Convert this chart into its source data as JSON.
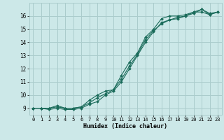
{
  "xlabel": "Humidex (Indice chaleur)",
  "bg_color": "#cce8e8",
  "grid_color": "#aacccc",
  "line_color": "#1a6b5a",
  "x_values": [
    0,
    1,
    2,
    3,
    4,
    5,
    6,
    7,
    8,
    9,
    10,
    11,
    12,
    13,
    14,
    15,
    16,
    17,
    18,
    19,
    20,
    21,
    22,
    23
  ],
  "line1": [
    9.0,
    9.0,
    8.9,
    9.0,
    8.9,
    8.9,
    9.0,
    9.3,
    9.5,
    10.0,
    10.3,
    11.0,
    12.0,
    13.0,
    14.0,
    14.8,
    15.5,
    15.7,
    15.8,
    16.0,
    16.3,
    16.3,
    16.1,
    16.3
  ],
  "line2": [
    9.0,
    9.0,
    9.0,
    9.2,
    9.0,
    9.0,
    9.1,
    9.6,
    10.0,
    10.3,
    10.4,
    11.5,
    12.5,
    13.2,
    14.4,
    15.0,
    15.8,
    16.0,
    16.0,
    16.1,
    16.3,
    16.5,
    16.2,
    16.3
  ],
  "line3": [
    9.0,
    9.0,
    9.0,
    9.1,
    9.0,
    9.0,
    9.1,
    9.4,
    9.8,
    10.1,
    10.4,
    11.2,
    12.2,
    13.1,
    14.2,
    14.9,
    15.4,
    15.7,
    15.9,
    16.0,
    16.2,
    16.5,
    16.1,
    16.3
  ],
  "xlim": [
    -0.5,
    23.5
  ],
  "ylim": [
    8.5,
    17.0
  ],
  "yticks": [
    9,
    10,
    11,
    12,
    13,
    14,
    15,
    16
  ],
  "xticks": [
    0,
    1,
    2,
    3,
    4,
    5,
    6,
    7,
    8,
    9,
    10,
    11,
    12,
    13,
    14,
    15,
    16,
    17,
    18,
    19,
    20,
    21,
    22,
    23
  ]
}
